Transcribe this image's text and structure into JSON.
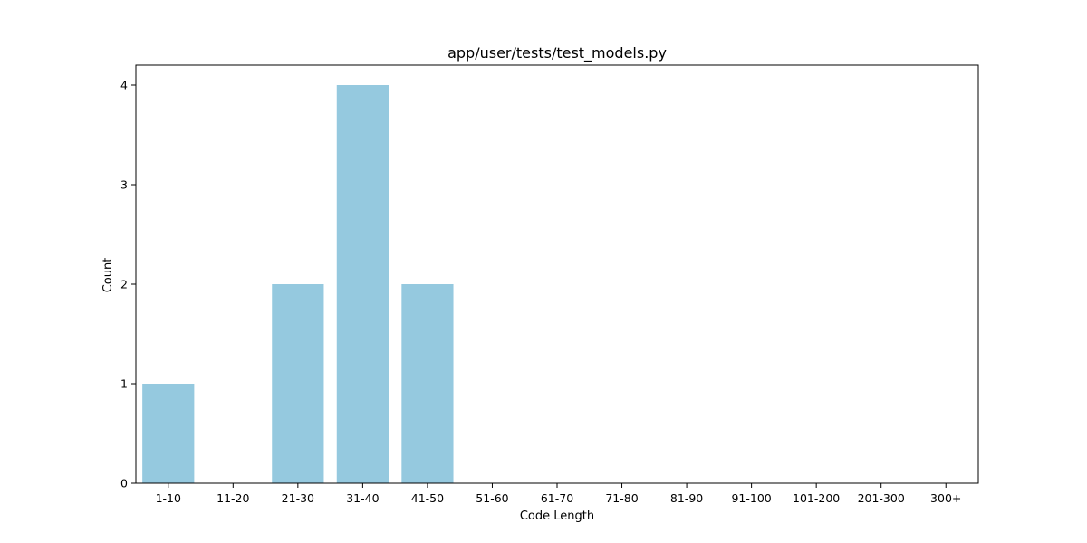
{
  "chart_data": {
    "type": "bar",
    "title": "app/user/tests/test_models.py",
    "xlabel": "Code Length",
    "ylabel": "Count",
    "categories": [
      "1-10",
      "11-20",
      "21-30",
      "31-40",
      "41-50",
      "51-60",
      "61-70",
      "71-80",
      "81-90",
      "91-100",
      "101-200",
      "201-300",
      "300+"
    ],
    "values": [
      1,
      0,
      2,
      4,
      2,
      0,
      0,
      0,
      0,
      0,
      0,
      0,
      0
    ],
    "yticks": [
      0,
      1,
      2,
      3,
      4
    ],
    "ylim": [
      0,
      4.2
    ],
    "bar_color": "#95c9df",
    "grid": false,
    "legend": "none"
  }
}
